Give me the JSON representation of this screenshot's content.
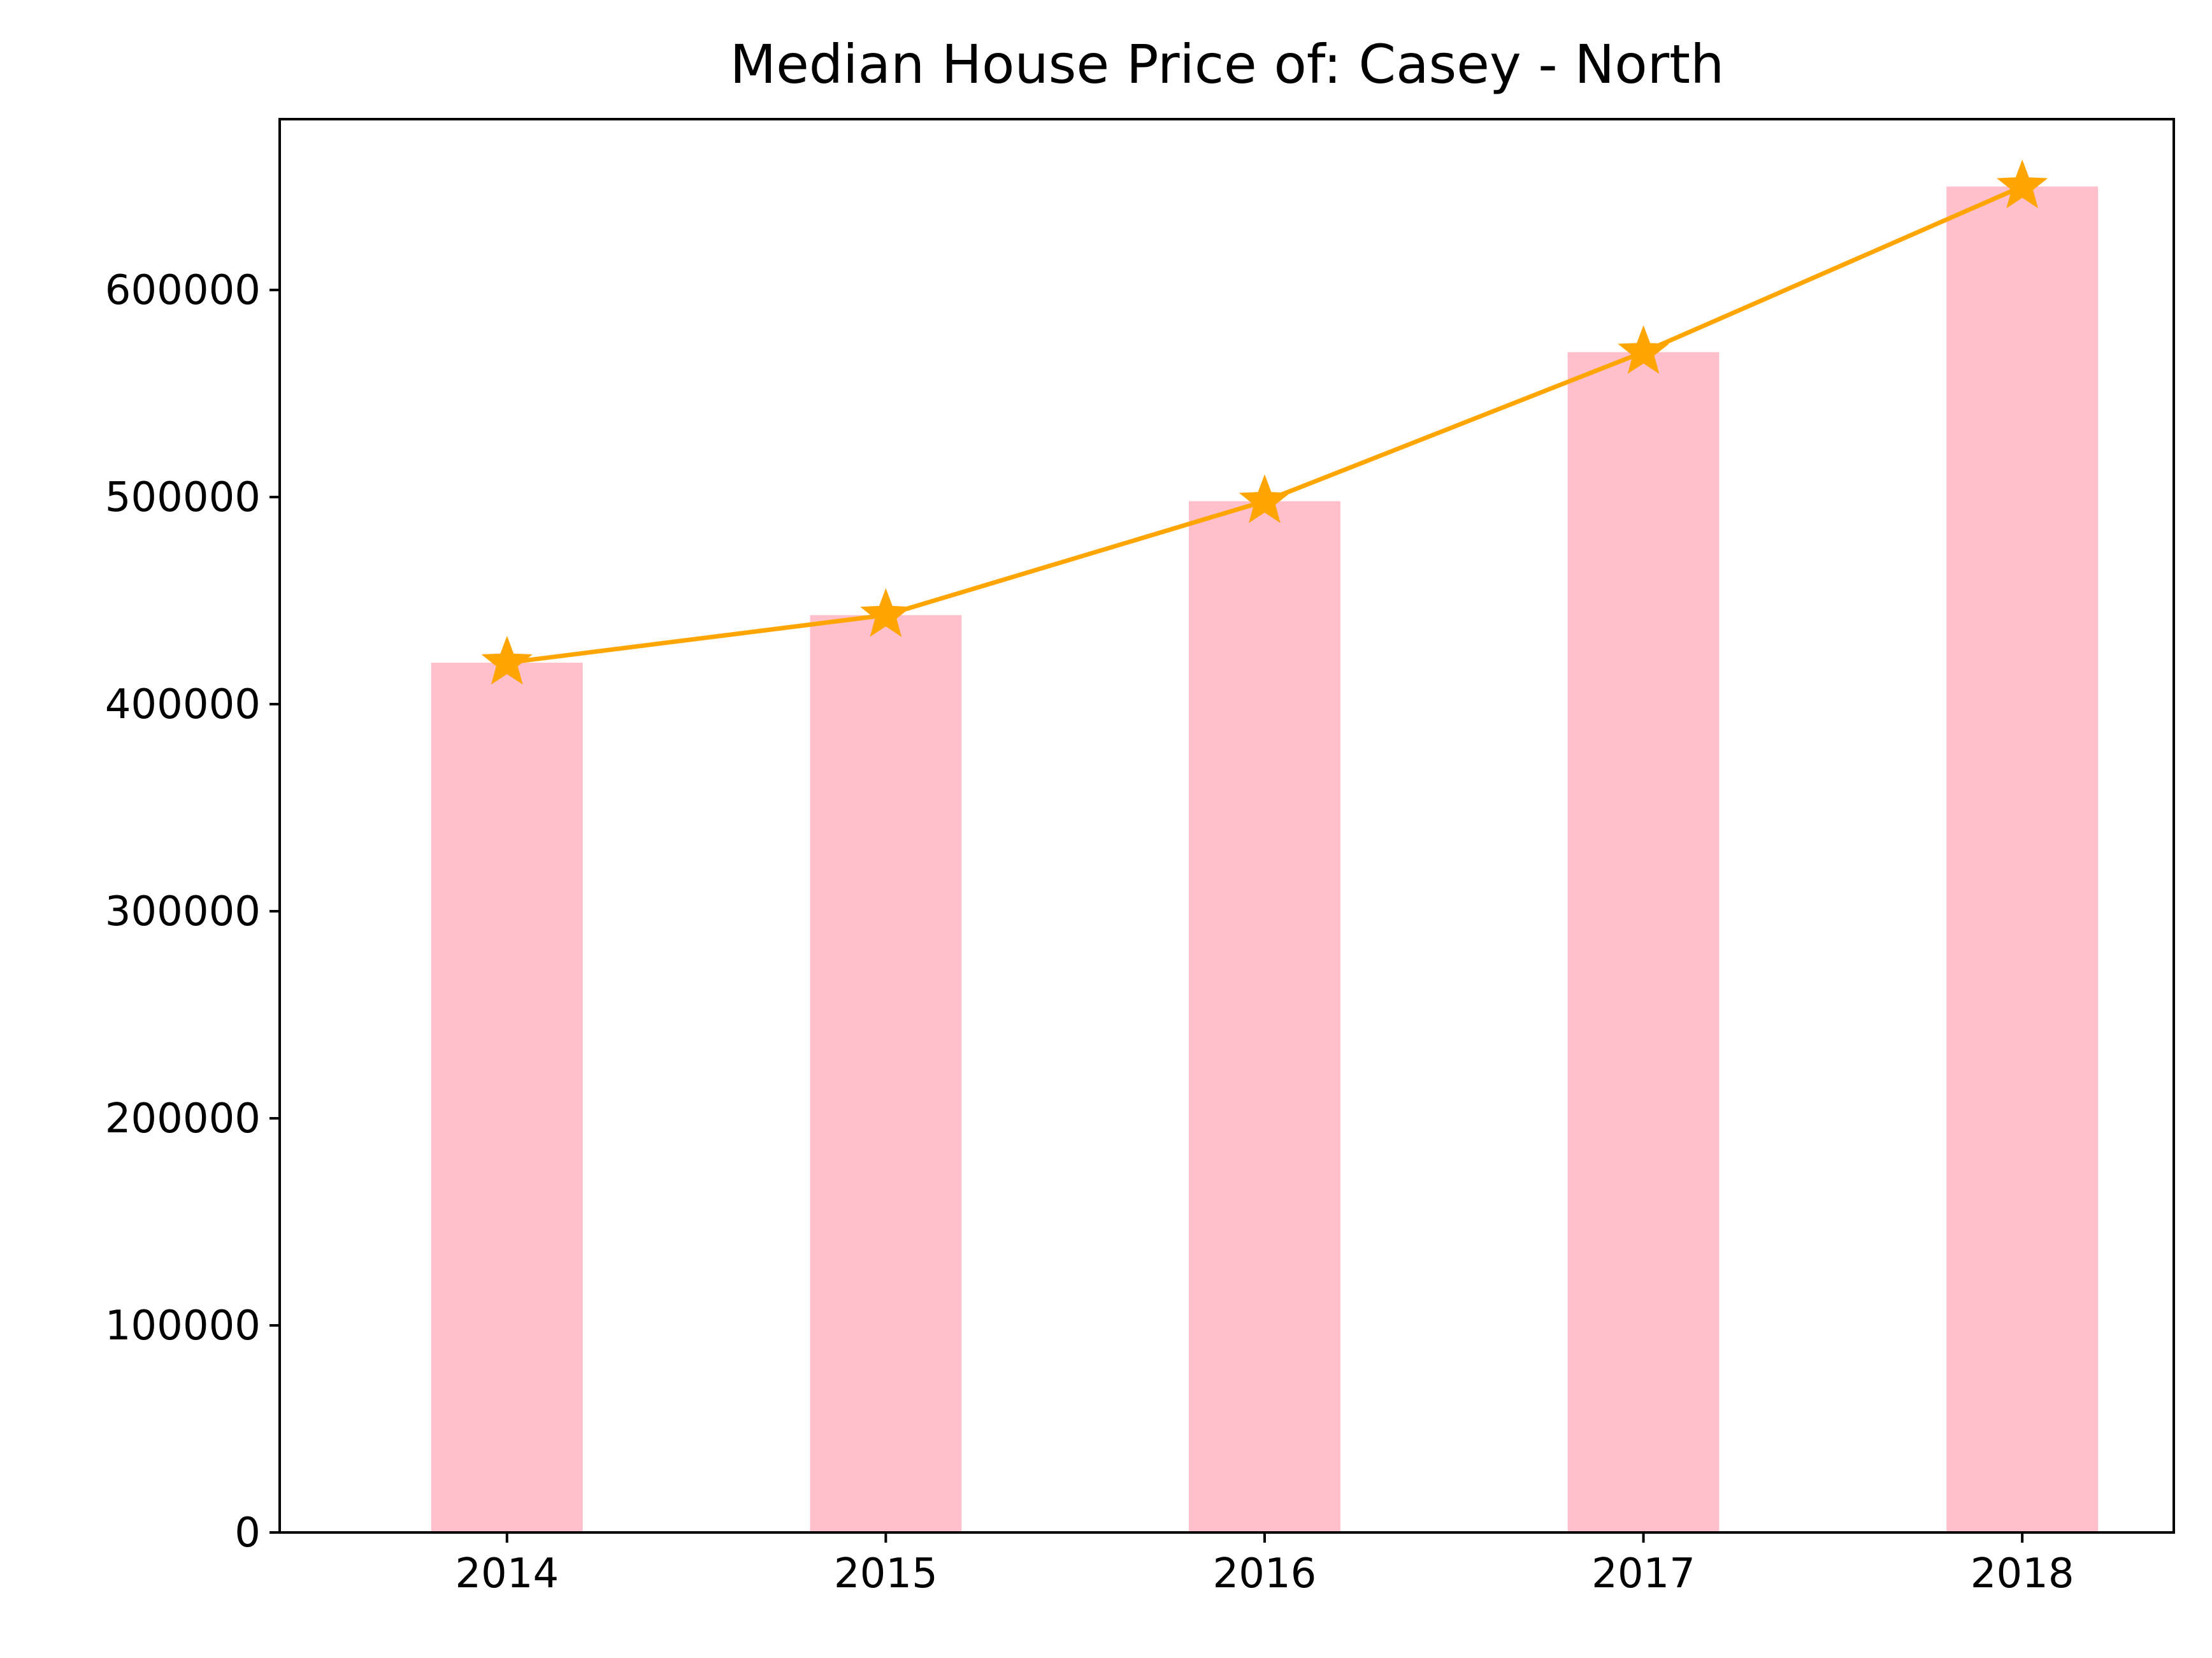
{
  "chart_data": {
    "type": "bar",
    "title": "Median House Price of: Casey - North",
    "xlabel": "",
    "ylabel": "",
    "categories": [
      "2014",
      "2015",
      "2016",
      "2017",
      "2018"
    ],
    "values": [
      420000,
      443000,
      498000,
      570000,
      650000
    ],
    "line_values": [
      420000,
      443000,
      498000,
      570000,
      650000
    ],
    "line_marker": "star",
    "ylim": [
      0,
      682500
    ],
    "yticks": [
      0,
      100000,
      200000,
      300000,
      400000,
      500000,
      600000
    ],
    "ytick_labels": [
      "0",
      "100000",
      "200000",
      "300000",
      "400000",
      "500000",
      "600000"
    ],
    "grid": false,
    "colors": {
      "bar": "#ffc0cb",
      "line": "#ffa500"
    }
  }
}
